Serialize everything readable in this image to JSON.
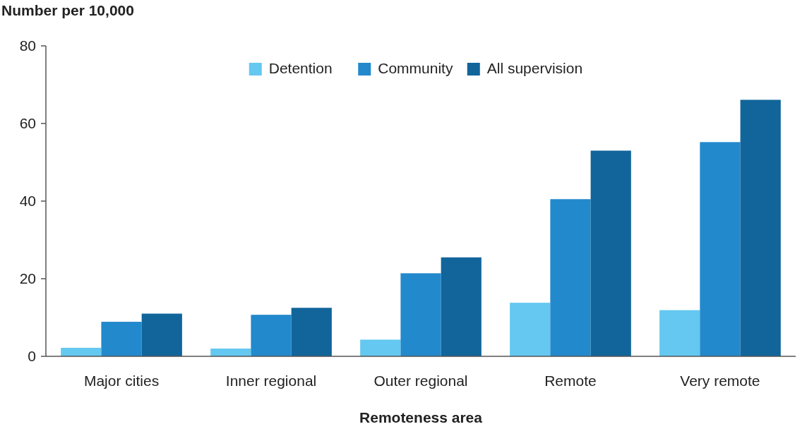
{
  "chart_data": {
    "type": "bar",
    "ylabel": "Number per 10,000",
    "xlabel": "Remoteness area",
    "categories": [
      "Major cities",
      "Inner regional",
      "Outer regional",
      "Remote",
      "Very remote"
    ],
    "series": [
      {
        "name": "Detention",
        "color": "#64c8f0",
        "values": [
          2.2,
          2.0,
          4.3,
          13.8,
          11.9
        ]
      },
      {
        "name": "Community",
        "color": "#2289cc",
        "values": [
          8.9,
          10.7,
          21.4,
          40.5,
          55.2
        ]
      },
      {
        "name": "All supervision",
        "color": "#11659b",
        "values": [
          11.0,
          12.5,
          25.5,
          53.0,
          66.1
        ]
      }
    ],
    "ylim": [
      0,
      80
    ],
    "yticks": [
      0,
      20,
      40,
      60,
      80
    ],
    "legend": "top",
    "grid": false
  }
}
